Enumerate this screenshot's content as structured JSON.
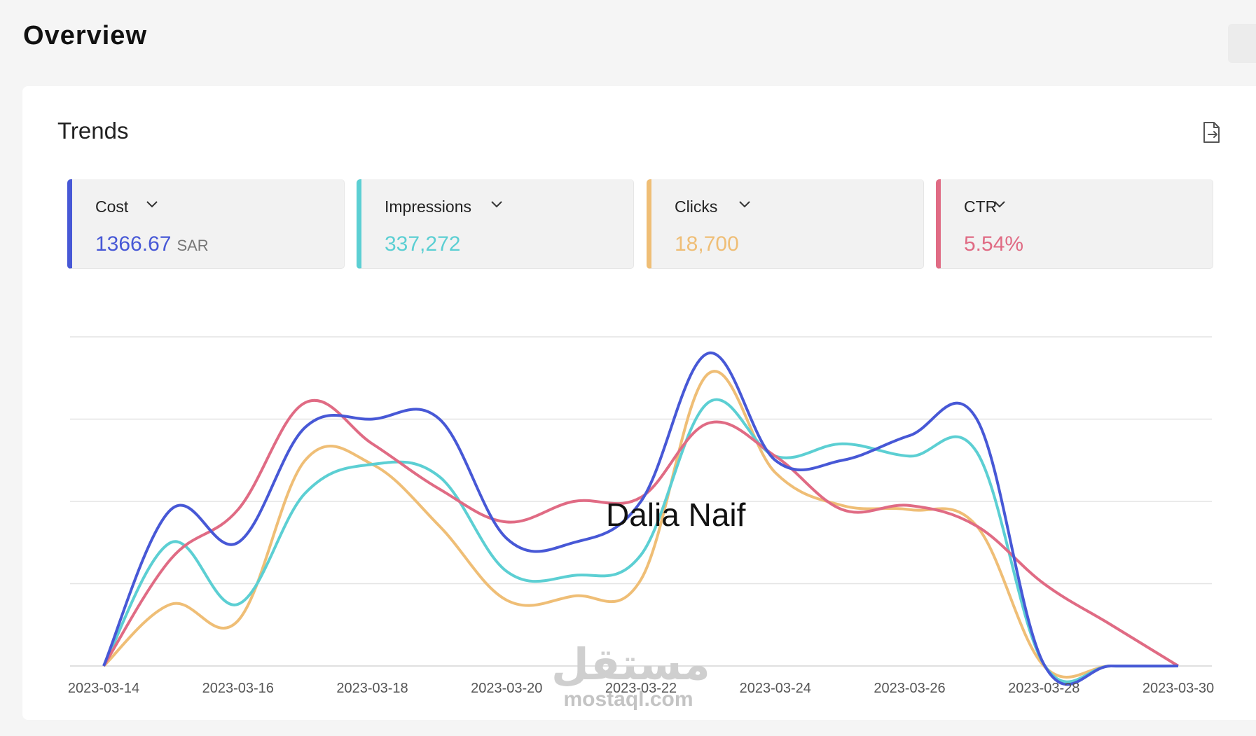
{
  "page": {
    "title": "Overview"
  },
  "card": {
    "title": "Trends",
    "export_icon": "file-export-icon"
  },
  "metrics": [
    {
      "label": "Cost",
      "value": "1366.67",
      "unit": "SAR",
      "color": "#4758d6"
    },
    {
      "label": "Impressions",
      "value": "337,272",
      "unit": "",
      "color": "#5ccfd3"
    },
    {
      "label": "Clicks",
      "value": "18,700",
      "unit": "",
      "color": "#efbe76"
    },
    {
      "label": "CTR",
      "value": "5.54%",
      "unit": "",
      "color": "#e06b84"
    }
  ],
  "overlay_text": "Dalia Naif",
  "watermark": {
    "arabic": "مستقل",
    "latin": "mostaql.com"
  },
  "chart_data": {
    "type": "line",
    "x": [
      "2023-03-14",
      "2023-03-15",
      "2023-03-16",
      "2023-03-17",
      "2023-03-18",
      "2023-03-19",
      "2023-03-20",
      "2023-03-21",
      "2023-03-22",
      "2023-03-23",
      "2023-03-24",
      "2023-03-25",
      "2023-03-26",
      "2023-03-27",
      "2023-03-28",
      "2023-03-29",
      "2023-03-30"
    ],
    "x_tick_labels": [
      "2023-03-14",
      "2023-03-16",
      "2023-03-18",
      "2023-03-20",
      "2023-03-22",
      "2023-03-24",
      "2023-03-26",
      "2023-03-28",
      "2023-03-30"
    ],
    "ylim": [
      0,
      4
    ],
    "grid": true,
    "series": [
      {
        "name": "Cost",
        "color": "#4758d6",
        "values": [
          0,
          1.9,
          1.5,
          2.9,
          3.0,
          3.0,
          1.55,
          1.5,
          2.0,
          3.8,
          2.5,
          2.5,
          2.8,
          3.0,
          0.02,
          0.0,
          0.0
        ]
      },
      {
        "name": "Impressions",
        "color": "#5ccfd3",
        "values": [
          0,
          1.5,
          0.75,
          2.1,
          2.45,
          2.3,
          1.15,
          1.1,
          1.35,
          3.2,
          2.55,
          2.7,
          2.55,
          2.6,
          0.02,
          0.0,
          0.0
        ]
      },
      {
        "name": "Clicks",
        "color": "#efbe76",
        "values": [
          0,
          0.75,
          0.55,
          2.5,
          2.45,
          1.7,
          0.8,
          0.85,
          1.05,
          3.55,
          2.35,
          1.95,
          1.9,
          1.7,
          0.0,
          0.0,
          0.0
        ]
      },
      {
        "name": "CTR",
        "color": "#e06b84",
        "values": [
          0,
          1.3,
          1.9,
          3.2,
          2.7,
          2.15,
          1.75,
          2.0,
          2.05,
          2.95,
          2.55,
          1.9,
          1.95,
          1.7,
          1.0,
          0.5,
          0.0
        ]
      }
    ]
  }
}
